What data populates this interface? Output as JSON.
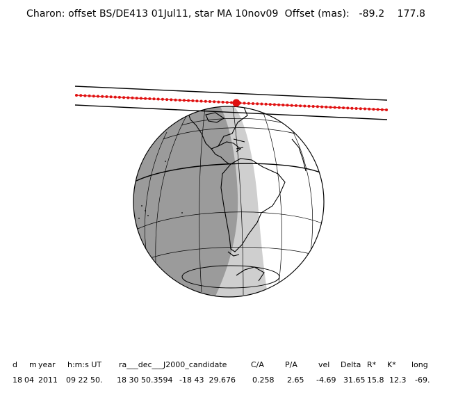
{
  "title": {
    "text": "Charon: offset BS/DE413 01Jul11, star MA 10nov09  Offset (mas):",
    "offset_x": "-89.2",
    "offset_y": "177.8"
  },
  "colors": {
    "night": "#9b9b9b",
    "twilight": "#cfcfcf",
    "day": "#ffffff",
    "outline": "#000000",
    "track": "#e01010"
  },
  "table": {
    "headers": [
      "d",
      "m",
      "year",
      "h:m:s UT",
      "ra___dec___J2000_candidate",
      "C/A",
      "P/A",
      "vel",
      "Delta",
      "R*",
      "K*",
      "long"
    ],
    "values": [
      "18",
      "04",
      "2011",
      "09 22 50.",
      "18 30 50.3594",
      "-18 43  29.676",
      "0.258",
      "2.65",
      "-4.69",
      "31.65",
      "15.8",
      "12.3",
      "-69."
    ]
  }
}
